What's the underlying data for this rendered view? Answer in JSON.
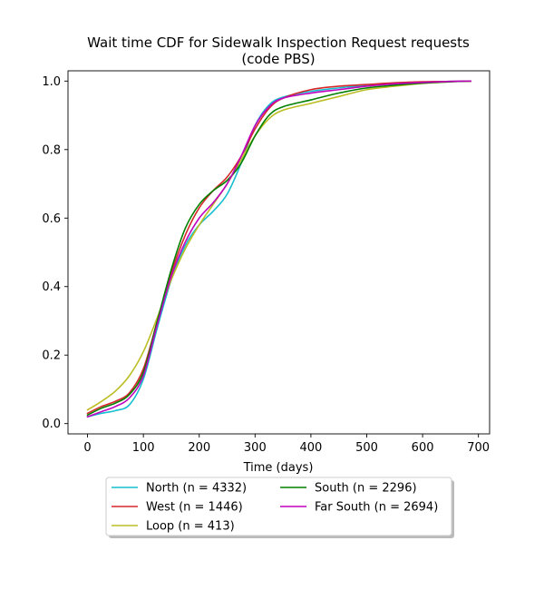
{
  "chart_data": {
    "type": "line",
    "title_line1": "Wait time CDF for Sidewalk Inspection Request  requests",
    "title_line2": "(code PBS)",
    "xlabel": "Time (days)",
    "ylabel": "",
    "xlim": [
      -35,
      720
    ],
    "ylim": [
      -0.03,
      1.03
    ],
    "x_ticks": [
      0,
      100,
      200,
      300,
      400,
      500,
      600,
      700
    ],
    "x_tick_labels": [
      "0",
      "100",
      "200",
      "300",
      "400",
      "500",
      "600",
      "700"
    ],
    "y_ticks": [
      0.0,
      0.2,
      0.4,
      0.6,
      0.8,
      1.0
    ],
    "y_tick_labels": [
      "0.0",
      "0.2",
      "0.4",
      "0.6",
      "0.8",
      "1.0"
    ],
    "grid": false,
    "legend_placement": "below-center",
    "legend_columns": 2,
    "series": [
      {
        "name": "North (n = 4332)",
        "color": "#17becf",
        "x": [
          0,
          25,
          50,
          75,
          100,
          125,
          150,
          175,
          200,
          225,
          250,
          275,
          300,
          325,
          350,
          400,
          450,
          500,
          550,
          600,
          650,
          686
        ],
        "y": [
          0.02,
          0.03,
          0.038,
          0.055,
          0.13,
          0.28,
          0.42,
          0.52,
          0.58,
          0.62,
          0.67,
          0.76,
          0.87,
          0.93,
          0.953,
          0.97,
          0.98,
          0.988,
          0.994,
          0.997,
          0.999,
          1.0
        ]
      },
      {
        "name": "West (n = 1446)",
        "color": "#d62728",
        "x": [
          0,
          25,
          50,
          75,
          100,
          125,
          150,
          175,
          200,
          225,
          250,
          275,
          300,
          325,
          350,
          400,
          450,
          500,
          550,
          600,
          650,
          686
        ],
        "y": [
          0.03,
          0.05,
          0.065,
          0.09,
          0.16,
          0.3,
          0.44,
          0.55,
          0.63,
          0.68,
          0.72,
          0.78,
          0.86,
          0.92,
          0.95,
          0.975,
          0.985,
          0.99,
          0.995,
          0.998,
          0.999,
          1.0
        ]
      },
      {
        "name": "Loop (n = 413)",
        "color": "#bcbd22",
        "x": [
          0,
          25,
          50,
          75,
          100,
          125,
          150,
          175,
          200,
          225,
          250,
          275,
          300,
          325,
          350,
          400,
          450,
          500,
          550,
          600,
          650,
          686
        ],
        "y": [
          0.04,
          0.065,
          0.095,
          0.14,
          0.21,
          0.31,
          0.42,
          0.51,
          0.58,
          0.64,
          0.7,
          0.77,
          0.84,
          0.89,
          0.915,
          0.935,
          0.955,
          0.975,
          0.985,
          0.993,
          0.998,
          1.0
        ]
      },
      {
        "name": "South (n = 2296)",
        "color": "#008000",
        "x": [
          0,
          25,
          50,
          75,
          100,
          125,
          150,
          175,
          200,
          225,
          250,
          275,
          300,
          325,
          350,
          400,
          450,
          500,
          550,
          600,
          650,
          686
        ],
        "y": [
          0.025,
          0.045,
          0.06,
          0.085,
          0.15,
          0.3,
          0.45,
          0.57,
          0.64,
          0.68,
          0.71,
          0.76,
          0.84,
          0.9,
          0.925,
          0.945,
          0.965,
          0.98,
          0.988,
          0.994,
          0.998,
          1.0
        ]
      },
      {
        "name": "Far South (n = 2694)",
        "color": "#bf00bf",
        "x": [
          0,
          25,
          50,
          75,
          100,
          125,
          150,
          175,
          200,
          225,
          250,
          275,
          300,
          325,
          350,
          400,
          450,
          500,
          550,
          600,
          650,
          686
        ],
        "y": [
          0.02,
          0.035,
          0.05,
          0.075,
          0.14,
          0.29,
          0.43,
          0.53,
          0.6,
          0.645,
          0.7,
          0.78,
          0.87,
          0.925,
          0.95,
          0.965,
          0.975,
          0.985,
          0.992,
          0.996,
          0.999,
          1.0
        ]
      }
    ]
  }
}
